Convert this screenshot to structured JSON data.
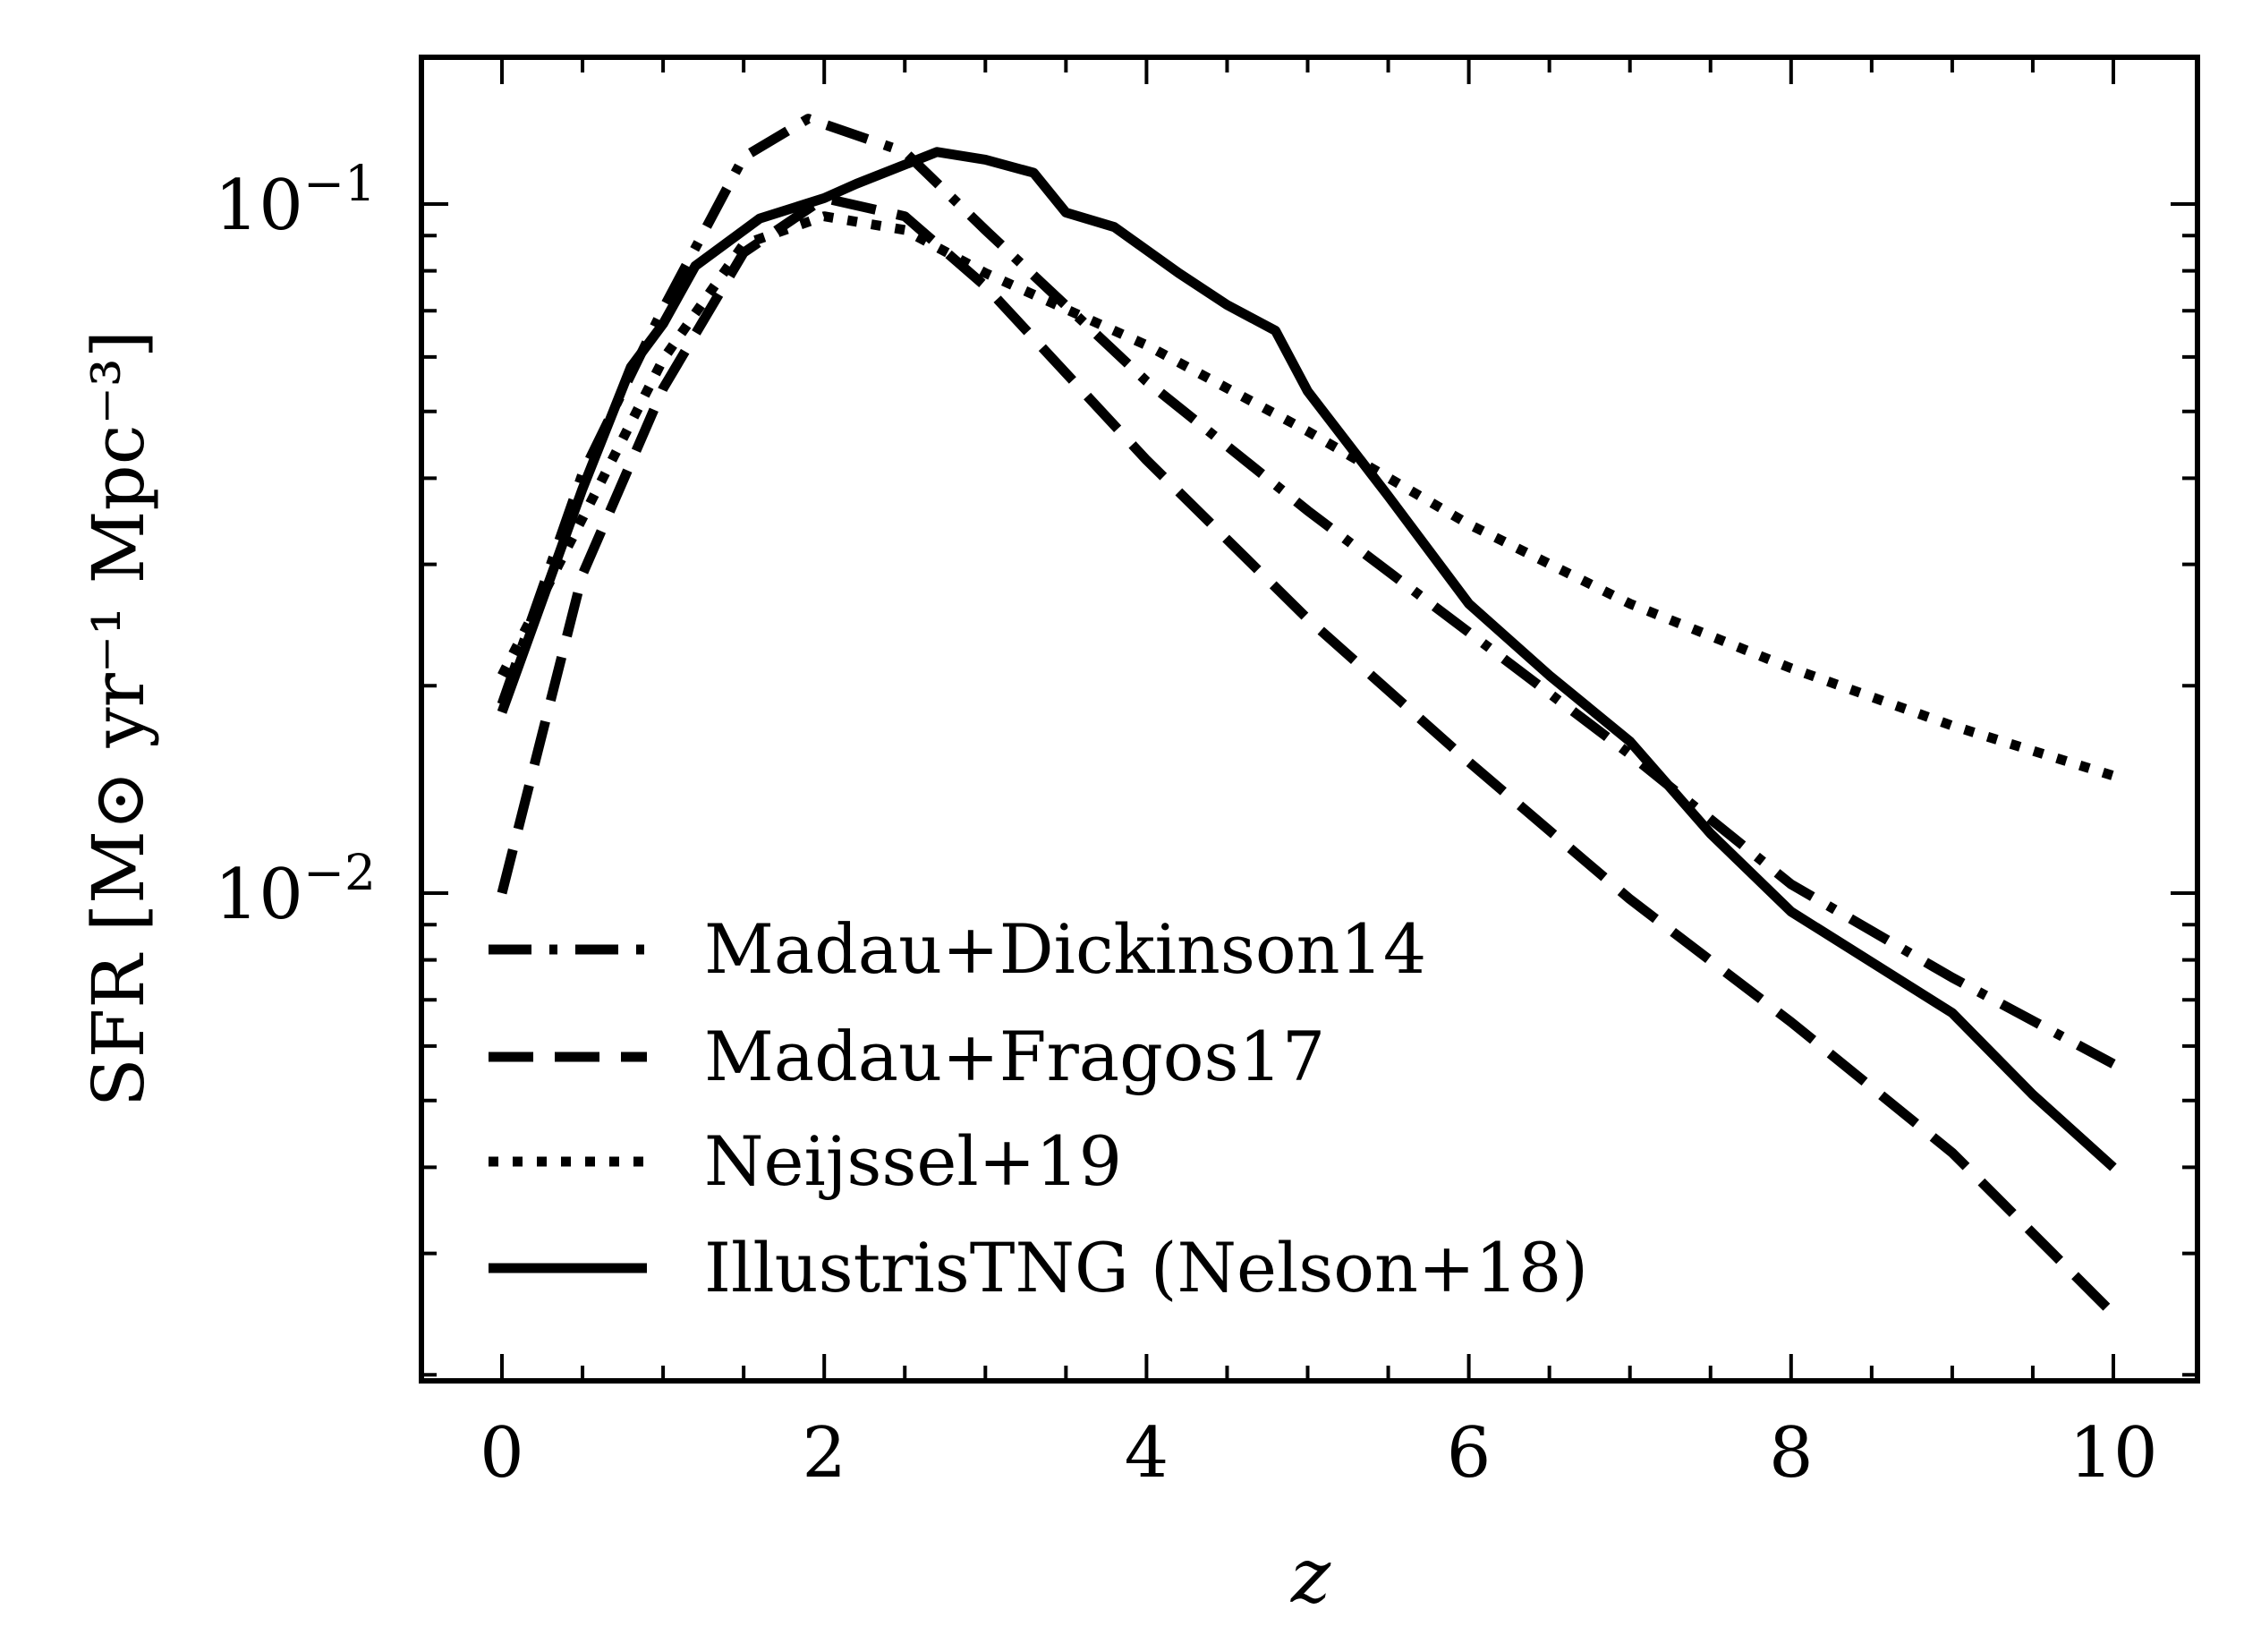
{
  "chart_data": {
    "type": "line",
    "title": "",
    "xlabel": "z",
    "ylabel": "SFR [M⊙ yr⁻¹ Mpc⁻³]",
    "xlim": [
      -0.5,
      10.5
    ],
    "ylim": [
      0.00196,
      0.163
    ],
    "yscale": "log",
    "grid": false,
    "legend_position": "bottom-left",
    "x_ticks": [
      "0",
      "2",
      "4",
      "6",
      "8",
      "10"
    ],
    "x_tick_values": [
      0,
      2,
      4,
      6,
      8,
      10
    ],
    "y_ticks": [
      {
        "value": 0.1,
        "base": "10",
        "exp": "−1"
      },
      {
        "value": 0.01,
        "base": "10",
        "exp": "−2"
      }
    ],
    "color": "#000000",
    "series": [
      {
        "name": "Madau+Dickinson14",
        "style": "dashdot",
        "x": [
          0,
          0.5,
          1,
          1.5,
          1.9,
          2.5,
          3,
          4,
          5,
          6,
          7,
          8,
          9,
          10
        ],
        "y": [
          0.0188,
          0.0406,
          0.0705,
          0.117,
          0.133,
          0.119,
          0.0917,
          0.0553,
          0.0359,
          0.0239,
          0.0159,
          0.0103,
          0.00754,
          0.00565
        ]
      },
      {
        "name": "Madau+Fragos17",
        "style": "dashed",
        "x": [
          0,
          0.5,
          1,
          1.5,
          2,
          2.5,
          3,
          4,
          5,
          6,
          7,
          8,
          9,
          10
        ],
        "y": [
          0.01,
          0.029,
          0.054,
          0.085,
          0.102,
          0.096,
          0.076,
          0.0425,
          0.025,
          0.0155,
          0.0098,
          0.0065,
          0.0042,
          0.00245
        ]
      },
      {
        "name": "Neijssel+19",
        "style": "dotted",
        "x": [
          0,
          0.5,
          1,
          1.5,
          2,
          2.5,
          3,
          4,
          5,
          6,
          7,
          8,
          9,
          10
        ],
        "y": [
          0.0207,
          0.035,
          0.0595,
          0.0874,
          0.096,
          0.0917,
          0.0794,
          0.0624,
          0.0468,
          0.0343,
          0.0263,
          0.0212,
          0.0175,
          0.0148
        ]
      },
      {
        "name": "IllustrisTNG (Nelson+18)",
        "style": "solid",
        "x": [
          0,
          0.5,
          0.8,
          1,
          1.2,
          1.6,
          2,
          2.2,
          2.7,
          3,
          3.3,
          3.5,
          3.8,
          4.2,
          4.5,
          4.8,
          5,
          5.5,
          6,
          6.5,
          7,
          7.5,
          8,
          9,
          9.5,
          10
        ],
        "y": [
          0.0183,
          0.0386,
          0.058,
          0.067,
          0.0813,
          0.0953,
          0.102,
          0.107,
          0.119,
          0.116,
          0.111,
          0.0972,
          0.0926,
          0.0794,
          0.0714,
          0.0655,
          0.0535,
          0.0377,
          0.0263,
          0.0207,
          0.0166,
          0.0122,
          0.0094,
          0.0067,
          0.0051,
          0.004
        ]
      }
    ]
  }
}
